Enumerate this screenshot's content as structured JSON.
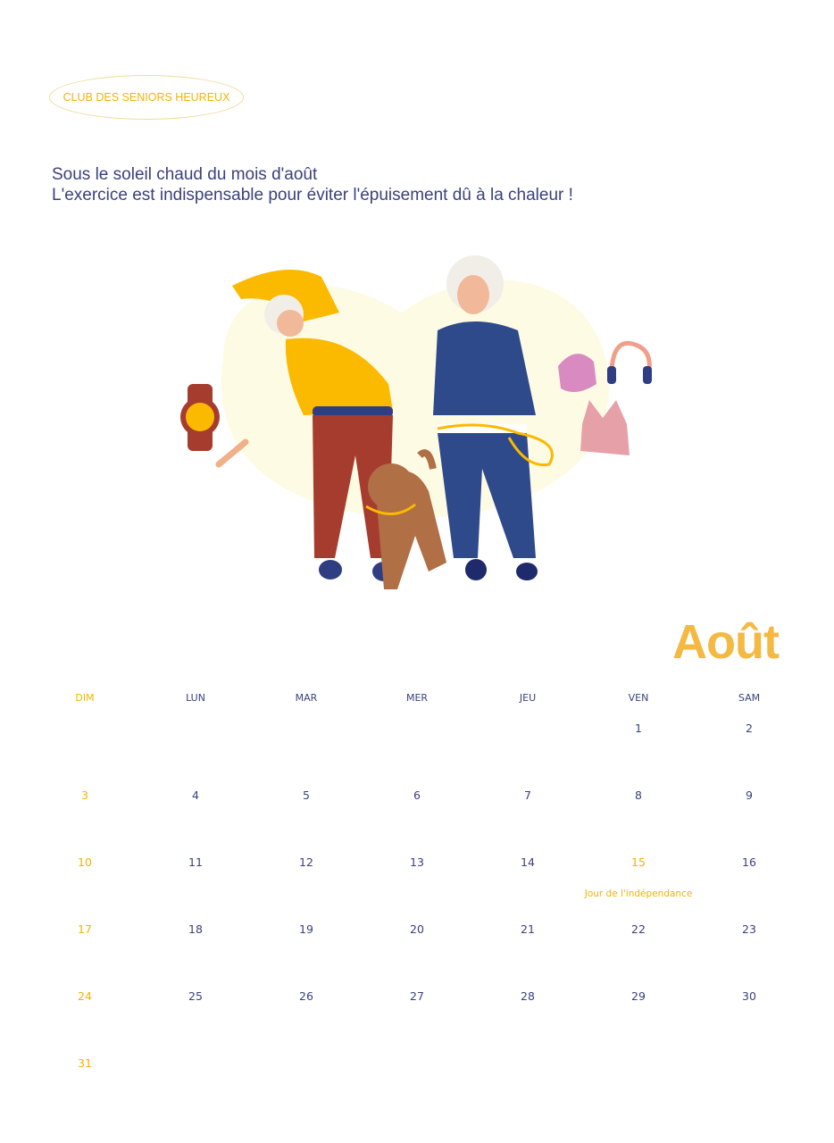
{
  "club_name": "CLUB DES SENIORS HEUREUX",
  "subtitle": {
    "line1": "Sous le soleil chaud du mois d'août",
    "line2": "L'exercice est indispensable pour éviter l'épuisement dû à la chaleur !"
  },
  "illustration": {
    "icons": [
      "watch-icon",
      "bone-icon",
      "cap-icon",
      "headphones-icon",
      "sports-bra-icon"
    ]
  },
  "month": "Août",
  "weekdays": [
    "DIM",
    "LUN",
    "MAR",
    "MER",
    "JEU",
    "VEN",
    "SAM"
  ],
  "weeks": [
    [
      "",
      "",
      "",
      "",
      "",
      "1",
      "2"
    ],
    [
      "3",
      "4",
      "5",
      "6",
      "7",
      "8",
      "9"
    ],
    [
      "10",
      "11",
      "12",
      "13",
      "14",
      "15",
      "16"
    ],
    [
      "17",
      "18",
      "19",
      "20",
      "21",
      "22",
      "23"
    ],
    [
      "24",
      "25",
      "26",
      "27",
      "28",
      "29",
      "30"
    ],
    [
      "31",
      "",
      "",
      "",
      "",
      "",
      ""
    ]
  ],
  "holidays": [
    {
      "day": "15",
      "label": "Jour de l'indépendance"
    }
  ],
  "colors": {
    "accent": "#f2b400",
    "text": "#3a417e",
    "title": "#f4b942"
  }
}
